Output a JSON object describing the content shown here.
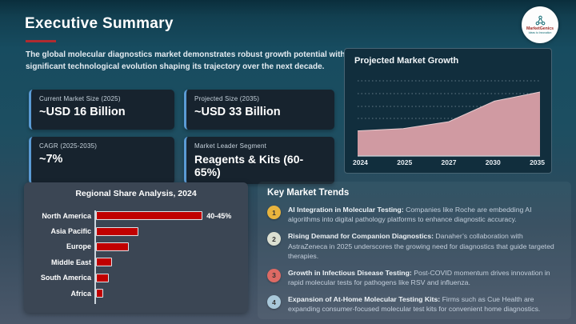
{
  "slide": {
    "title": "Executive Summary",
    "intro": "The global molecular diagnostics market demonstrates robust growth potential with significant technological evolution shaping its trajectory over the next decade."
  },
  "logo": {
    "name": "MarketGenics",
    "tagline": "Ideas to Innovation"
  },
  "stats": {
    "accent_color": "#5b9bd5",
    "cards": [
      {
        "label": "Current Market Size (2025)",
        "value": "~USD 16 Billion"
      },
      {
        "label": "Projected Size (2035)",
        "value": "~USD 33 Billion"
      },
      {
        "label": "CAGR (2025-2035)",
        "value": "~7%"
      },
      {
        "label": "Market Leader Segment",
        "value": "Reagents & Kits (60-65%)"
      }
    ]
  },
  "chart_data": [
    {
      "type": "area",
      "title": "Projected Market Growth",
      "x": [
        "2024",
        "2025",
        "2027",
        "2030",
        "2035"
      ],
      "values": [
        16,
        17,
        20,
        29,
        33
      ],
      "ylim": [
        5,
        40
      ],
      "grid": "dotted-horizontal",
      "fill_color": "#d09aa2",
      "legend_position": "none"
    },
    {
      "type": "bar",
      "title": "Regional Share Analysis, 2024",
      "orientation": "horizontal",
      "categories": [
        "North America",
        "Asia Pacific",
        "Europe",
        "Middle East",
        "South America",
        "Africa"
      ],
      "values": [
        42.5,
        17,
        13,
        6.5,
        5,
        3
      ],
      "xlim": [
        0,
        45
      ],
      "bar_color": "#c00000",
      "annotations": [
        {
          "category": "North America",
          "label": "40-45%"
        }
      ]
    }
  ],
  "trends": {
    "heading": "Key Market Trends",
    "items": [
      {
        "num": "1",
        "circle_color": "#e8b43e",
        "title": "AI Integration in Molecular Testing:",
        "desc": "Companies like Roche are embedding AI algorithms into digital pathology platforms to enhance diagnostic accuracy."
      },
      {
        "num": "2",
        "circle_color": "#dce0d2",
        "title": "Rising Demand for Companion Diagnostics:",
        "desc": "Danaher’s collaboration with AstraZeneca in 2025 underscores the growing need for diagnostics that guide targeted therapies."
      },
      {
        "num": "3",
        "circle_color": "#dd6a64",
        "title": "Growth in Infectious Disease Testing:",
        "desc": "Post-COVID momentum drives innovation in rapid molecular tests for pathogens like RSV and influenza."
      },
      {
        "num": "4",
        "circle_color": "#a9c8da",
        "title": "Expansion of At-Home Molecular Testing Kits:",
        "desc": "Firms such as Cue Health are expanding consumer-focused molecular test kits for convenient home diagnostics."
      }
    ]
  }
}
